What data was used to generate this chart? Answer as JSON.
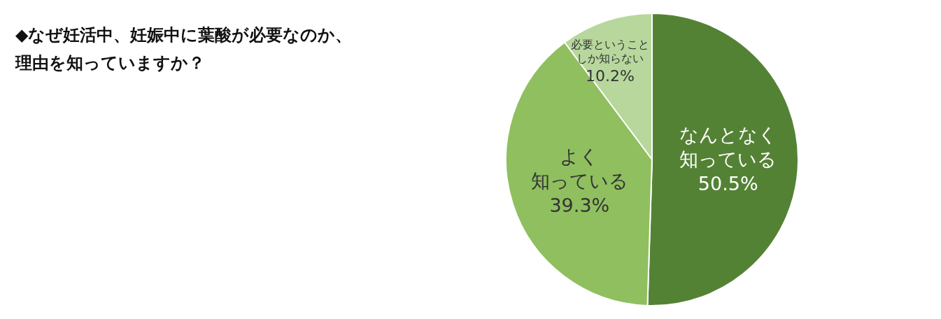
{
  "chart_data": {
    "type": "pie",
    "title": "◆なぜ妊活中、妊娠中に葉酸が必要なのか、理由を知っていますか？",
    "categories": [
      "なんとなく知っている",
      "よく知っている",
      "必要ということしか知らない"
    ],
    "values": [
      50.5,
      39.3,
      10.2
    ],
    "value_labels": [
      "50.5%",
      "39.3%",
      "10.2%"
    ],
    "colors": [
      "#548235",
      "#8fbf5f",
      "#b7d79c"
    ],
    "legend": false
  }
}
